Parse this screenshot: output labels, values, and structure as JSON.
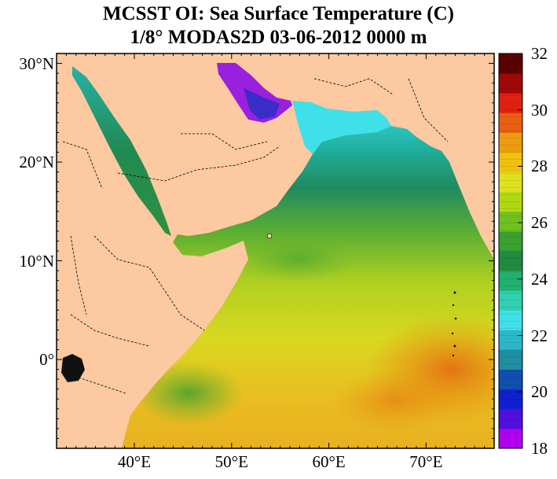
{
  "title": "MCSST OI:  Sea Surface Temperature (C)",
  "subtitle": "1/8° MODAS2D 03-06-2012 0000 m",
  "map": {
    "lon_range": [
      32,
      77
    ],
    "lat_range": [
      -9,
      31
    ],
    "lat_ticks": [
      {
        "label": "30°N",
        "lat": 30
      },
      {
        "label": "20°N",
        "lat": 20
      },
      {
        "label": "10°N",
        "lat": 10
      },
      {
        "label": "0°",
        "lat": 0
      }
    ],
    "lon_ticks": [
      {
        "label": "40°E",
        "lon": 40
      },
      {
        "label": "50°E",
        "lon": 50
      },
      {
        "label": "60°E",
        "lon": 60
      },
      {
        "label": "70°E",
        "lon": 70
      }
    ],
    "land_color": "#fcc9a0",
    "border_style": "dashed"
  },
  "colorbar": {
    "min": 18,
    "max": 32,
    "ticks": [
      "32",
      "30",
      "28",
      "26",
      "24",
      "22",
      "20",
      "18"
    ],
    "colors": [
      "#b000f0",
      "#5010e0",
      "#1020d0",
      "#1050b0",
      "#1e8fa0",
      "#2ab8c8",
      "#40e0e8",
      "#30d0b0",
      "#20b070",
      "#208a40",
      "#3aa030",
      "#70c020",
      "#b0d810",
      "#e0e020",
      "#f0c010",
      "#ec9c10",
      "#e86010",
      "#e02010",
      "#a00808",
      "#5a0000"
    ]
  }
}
